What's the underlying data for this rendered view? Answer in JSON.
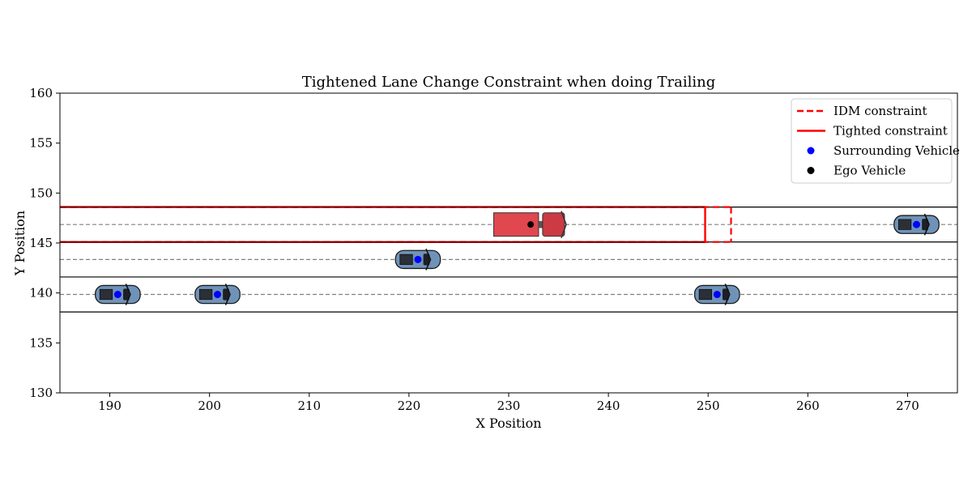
{
  "chart_data": {
    "type": "scatter",
    "title": "Tightened Lane Change Constraint when doing Trailing",
    "xlabel": "X Position",
    "ylabel": "Y Position",
    "xlim": [
      185,
      275
    ],
    "ylim": [
      130,
      160
    ],
    "xticks": [
      190,
      200,
      210,
      220,
      230,
      240,
      250,
      260,
      270
    ],
    "yticks": [
      130,
      135,
      140,
      145,
      150,
      155,
      160
    ],
    "grid": false,
    "legend_position": "top-right",
    "lane_boundaries_y": [
      138.1,
      141.6,
      145.1,
      148.6
    ],
    "lane_centers_y": [
      139.85,
      143.35,
      146.85
    ],
    "idm_constraint": {
      "x_start": 185,
      "x_end": 252.3,
      "y_bottom": 145.1,
      "y_top": 148.6
    },
    "tightened_constraint": {
      "x_start": 185,
      "x_end": 249.7,
      "y_bottom": 145.1,
      "y_top": 148.6
    },
    "surrounding_vehicles": [
      {
        "x": 190.8,
        "y": 139.85
      },
      {
        "x": 200.8,
        "y": 139.85
      },
      {
        "x": 220.9,
        "y": 143.35
      },
      {
        "x": 250.9,
        "y": 139.85
      },
      {
        "x": 270.9,
        "y": 146.85
      }
    ],
    "ego_vehicle": {
      "x": 232.2,
      "y": 146.85
    },
    "legend": [
      {
        "label": "IDM constraint",
        "style": "dashed-line",
        "color": "#ff0000"
      },
      {
        "label": "Tighted constraint",
        "style": "solid-line",
        "color": "#ff0000"
      },
      {
        "label": "Surrounding Vehicle",
        "style": "marker",
        "color": "#0000ff"
      },
      {
        "label": "Ego Vehicle",
        "style": "marker",
        "color": "#000000"
      }
    ],
    "colors": {
      "constraint": "#ff0000",
      "tightened_edge": "#8b0000",
      "surrounding_marker": "#0000ff",
      "ego_marker": "#000000",
      "car_body": "#6f93b8",
      "truck_body": "#e0474f",
      "lane_center": "#808080"
    }
  }
}
